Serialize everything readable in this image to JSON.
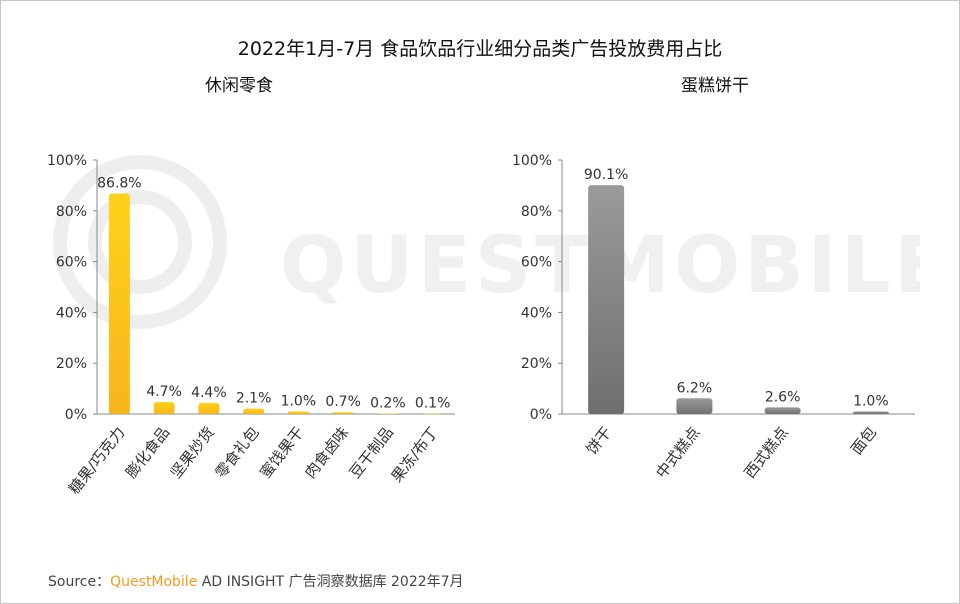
{
  "title": "2022年1月-7月 食品饮品行业细分品类广告投放费用占比",
  "watermark": "QUESTMOBILE",
  "source": {
    "prefix": "Source：",
    "brand": "QuestMobile",
    "rest": " AD INSIGHT 广告洞察数据库 2022年7月"
  },
  "colors": {
    "left_bar_top": "#ffd21a",
    "left_bar_bottom": "#f7b51c",
    "right_bar_top": "#9a9a9a",
    "right_bar_bottom": "#6f6f6f",
    "brand": "#f39a1e"
  },
  "chart_data": [
    {
      "type": "bar",
      "title": "休闲零食",
      "categories": [
        "糖果/巧克力",
        "膨化食品",
        "坚果炒货",
        "零食礼包",
        "蜜饯果干",
        "肉食卤味",
        "豆干制品",
        "果冻/布丁"
      ],
      "values": [
        86.8,
        4.7,
        4.4,
        2.1,
        1.0,
        0.7,
        0.2,
        0.1
      ],
      "data_labels": [
        "86.8%",
        "4.7%",
        "4.4%",
        "2.1%",
        "1.0%",
        "0.7%",
        "0.2%",
        "0.1%"
      ],
      "ylim": [
        0,
        100
      ],
      "yticks": [
        "0%",
        "20%",
        "40%",
        "60%",
        "80%",
        "100%"
      ],
      "grid": false
    },
    {
      "type": "bar",
      "title": "蛋糕饼干",
      "categories": [
        "饼干",
        "中式糕点",
        "西式糕点",
        "面包"
      ],
      "values": [
        90.1,
        6.2,
        2.6,
        1.0
      ],
      "data_labels": [
        "90.1%",
        "6.2%",
        "2.6%",
        "1.0%"
      ],
      "ylim": [
        0,
        100
      ],
      "yticks": [
        "0%",
        "20%",
        "40%",
        "60%",
        "80%",
        "100%"
      ],
      "grid": false
    }
  ]
}
